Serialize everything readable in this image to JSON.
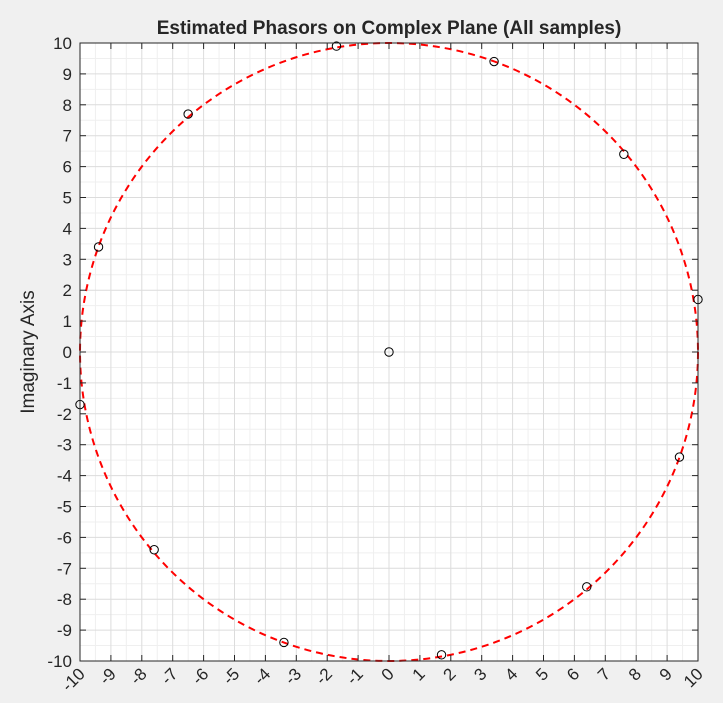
{
  "chart_data": {
    "type": "scatter",
    "title": "Estimated Phasors on Complex Plane (All samples)",
    "xlabel": "",
    "ylabel": "Imaginary Axis",
    "xlim": [
      -10,
      10
    ],
    "ylim": [
      -10,
      10
    ],
    "xticks": [
      -10,
      -9,
      -8,
      -7,
      -6,
      -5,
      -4,
      -3,
      -2,
      -1,
      0,
      1,
      2,
      3,
      4,
      5,
      6,
      7,
      8,
      9,
      10
    ],
    "yticks": [
      -10,
      -9,
      -8,
      -7,
      -6,
      -5,
      -4,
      -3,
      -2,
      -1,
      0,
      1,
      2,
      3,
      4,
      5,
      6,
      7,
      8,
      9,
      10
    ],
    "xtick_rotation": -45,
    "grid": true,
    "points": {
      "x": [
        0,
        10,
        7.6,
        3.4,
        -1.7,
        -6.5,
        -9.4,
        -10,
        -7.6,
        -3.4,
        1.7,
        6.4,
        9.4
      ],
      "y": [
        0,
        1.7,
        6.4,
        9.4,
        9.9,
        7.7,
        3.4,
        -1.7,
        -6.4,
        -9.4,
        -9.8,
        -7.6,
        -3.4
      ],
      "marker": "open-circle",
      "color": "#000000"
    },
    "reference_circle": {
      "center": [
        0,
        0
      ],
      "radius": 10,
      "style": "dashed",
      "color": "#ff0000"
    },
    "colors": {
      "figure_background": "#f0f0f0",
      "axes_background": "#ffffff",
      "grid": "#dcdcdc",
      "axis_text": "#262626"
    }
  }
}
